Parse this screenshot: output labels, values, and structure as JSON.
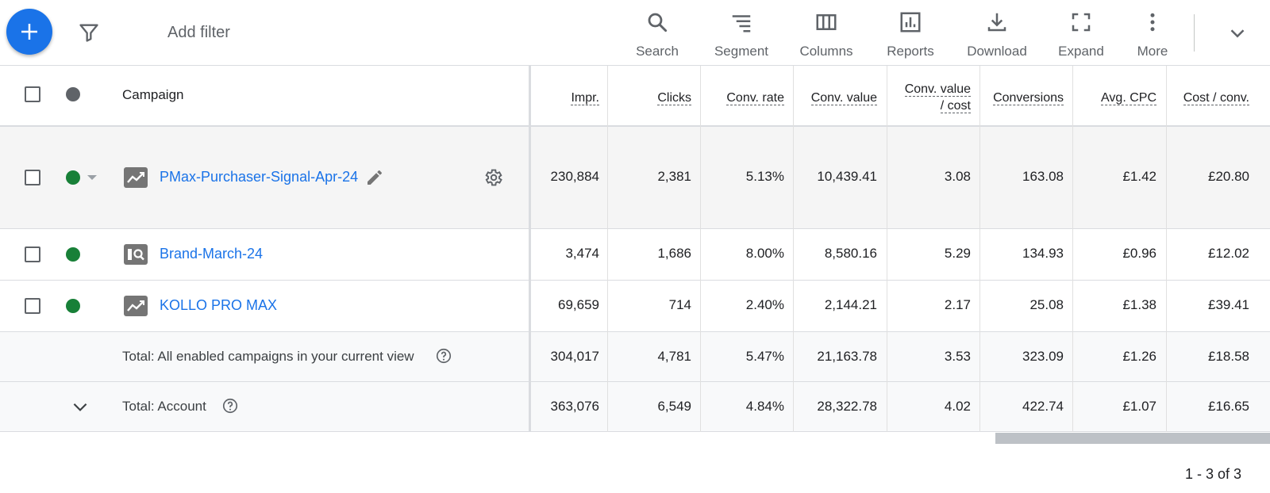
{
  "toolbar": {
    "add_filter": "Add filter",
    "tools": [
      {
        "label": "Search",
        "icon": "search-icon"
      },
      {
        "label": "Segment",
        "icon": "segment-icon"
      },
      {
        "label": "Columns",
        "icon": "columns-icon"
      },
      {
        "label": "Reports",
        "icon": "reports-icon"
      },
      {
        "label": "Download",
        "icon": "download-icon"
      },
      {
        "label": "Expand",
        "icon": "expand-icon"
      },
      {
        "label": "More",
        "icon": "more-vert-icon"
      }
    ]
  },
  "table": {
    "header": {
      "campaign": "Campaign",
      "columns": [
        [
          "Impr."
        ],
        [
          "Clicks"
        ],
        [
          "Conv. rate"
        ],
        [
          "Conv. value"
        ],
        [
          "Conv. value",
          "/ cost"
        ],
        [
          "Conversions"
        ],
        [
          "Avg. CPC"
        ],
        [
          "Cost / conv."
        ]
      ]
    },
    "rows": [
      {
        "name": "PMax-Purchaser-Signal-Apr-24",
        "status": "enabled",
        "icon": "performance-max-icon",
        "values": [
          "230,884",
          "2,381",
          "5.13%",
          "10,439.41",
          "3.08",
          "163.08",
          "£1.42",
          "£20.80"
        ]
      },
      {
        "name": "Brand-March-24",
        "status": "enabled",
        "icon": "search-campaign-icon",
        "values": [
          "3,474",
          "1,686",
          "8.00%",
          "8,580.16",
          "5.29",
          "134.93",
          "£0.96",
          "£12.02"
        ]
      },
      {
        "name": "KOLLO PRO MAX",
        "status": "enabled",
        "icon": "performance-max-icon",
        "values": [
          "69,659",
          "714",
          "2.40%",
          "2,144.21",
          "2.17",
          "25.08",
          "£1.38",
          "£39.41"
        ]
      }
    ],
    "totals": [
      {
        "label": "Total: All enabled campaigns in your current view",
        "values": [
          "304,017",
          "4,781",
          "5.47%",
          "21,163.78",
          "3.53",
          "323.09",
          "£1.26",
          "£18.58"
        ]
      },
      {
        "label": "Total: Account",
        "values": [
          "363,076",
          "6,549",
          "4.84%",
          "28,322.78",
          "4.02",
          "422.74",
          "£1.07",
          "£16.65"
        ]
      }
    ]
  },
  "pagination": "1 - 3 of 3",
  "colors": {
    "accent": "#1a73e8",
    "enabled": "#188038",
    "status_header": "#5f6368"
  }
}
